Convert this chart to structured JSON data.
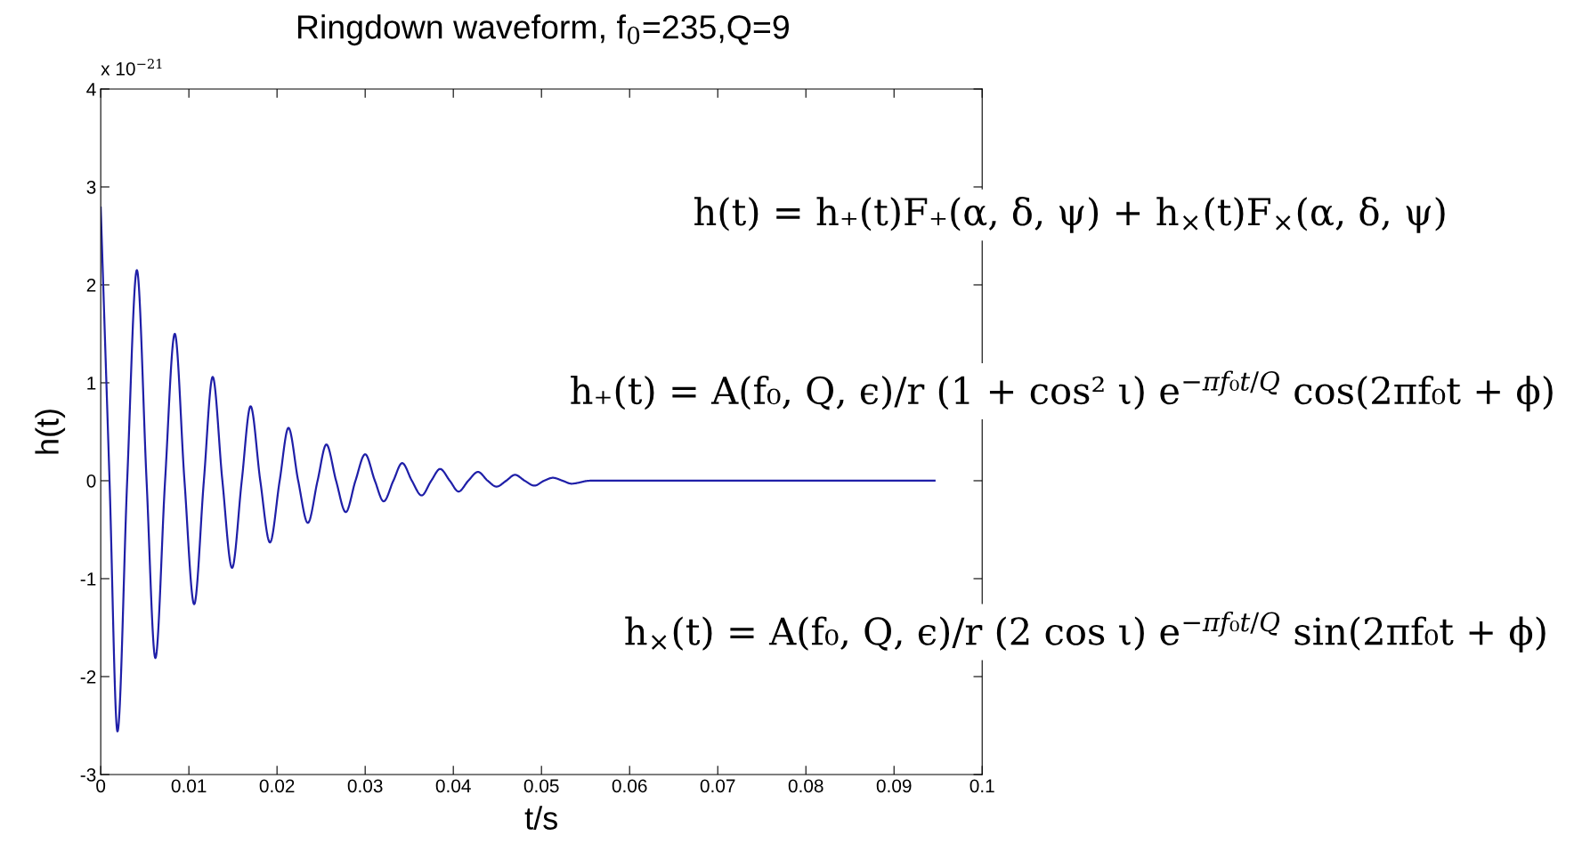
{
  "chart_data": {
    "type": "line",
    "title": "Ringdown waveform, f$_{0}$=235,Q=9",
    "xlabel": "t/s",
    "ylabel": "h(t)",
    "annotations": [
      "x 10$^{−21}$",
      "h(t) = h₊(t)F₊(α, δ, ψ) + h$_{×}$(t)F$_{×}$(α, δ, ψ)",
      "h₊(t) = A(f₀, Q, ϵ)/r (1 + cos² ι) e$^{−πf₀t/Q}$ cos(2πf₀t + ϕ)",
      "h$_{×}$(t) = A(f₀, Q, ϵ)/r (2 cos ι) e$^{−πf₀t/Q}$ sin(2πf₀t + ϕ)"
    ],
    "xlim": [
      0,
      0.1
    ],
    "ylim": [
      -3,
      4
    ],
    "xticks": [
      0,
      0.01,
      0.02,
      0.03,
      0.04,
      0.05,
      0.06,
      0.07,
      0.08,
      0.09,
      0.1
    ],
    "yticks": [
      -3,
      -2,
      -1,
      0,
      1,
      2,
      3,
      4
    ],
    "marker": "none",
    "line_style": "solid",
    "series": [
      {
        "color": "#1f1fa8",
        "x": [
          0,
          0.001,
          0.0019,
          0.003,
          0.0041,
          0.0052,
          0.0062,
          0.0073,
          0.0084,
          0.0095,
          0.0106,
          0.0117,
          0.0127,
          0.0138,
          0.0149,
          0.016,
          0.017,
          0.0181,
          0.0192,
          0.0203,
          0.0213,
          0.0224,
          0.0235,
          0.0246,
          0.0256,
          0.0267,
          0.0278,
          0.0289,
          0.03,
          0.0311,
          0.0321,
          0.0332,
          0.0342,
          0.0353,
          0.0364,
          0.0375,
          0.0385,
          0.0396,
          0.0406,
          0.0417,
          0.0428,
          0.0439,
          0.0449,
          0.046,
          0.047,
          0.0481,
          0.0492,
          0.0503,
          0.0513,
          0.0524,
          0.0534,
          0.0555,
          0.06,
          0.07,
          0.08,
          0.0946
        ],
        "values": [
          2.79,
          0,
          -2.56,
          0,
          2.15,
          0,
          -1.81,
          0,
          1.5,
          0,
          -1.26,
          0,
          1.06,
          0,
          -0.89,
          0,
          0.76,
          0,
          -0.63,
          0,
          0.54,
          0,
          -0.43,
          0,
          0.37,
          0,
          -0.32,
          0,
          0.27,
          0,
          -0.21,
          0,
          0.18,
          0,
          -0.15,
          0,
          0.12,
          0,
          -0.11,
          0,
          0.09,
          0,
          -0.06,
          0,
          0.06,
          0,
          -0.05,
          0,
          0.03,
          0,
          -0.03,
          0,
          0,
          0,
          0,
          0
        ]
      }
    ]
  }
}
